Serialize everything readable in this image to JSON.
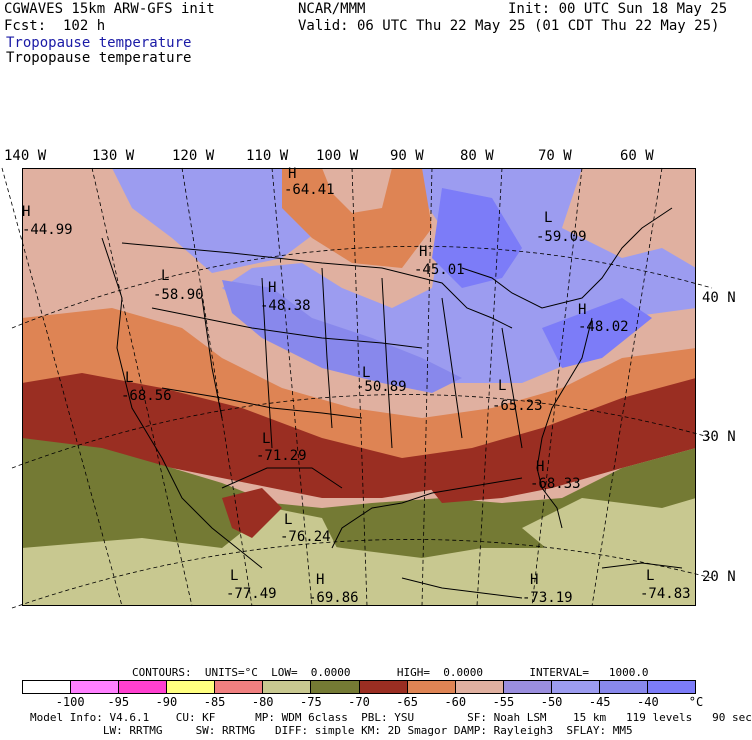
{
  "header": {
    "model_title": "CGWAVES 15km ARW-GFS init",
    "org": "NCAR/MMM",
    "init_time": "Init: 00 UTC Sun 18 May 25",
    "forecast_hour": "Fcst:  102 h",
    "valid_time": "Valid: 06 UTC Thu 22 May 25 (01 CDT Thu 22 May 25)",
    "field_title_1": "Tropopause temperature",
    "field_title_2": "Tropopause temperature"
  },
  "map": {
    "longitude_labels": [
      "140 W",
      "130 W",
      "120 W",
      "110 W",
      "100 W",
      "90 W",
      "80 W",
      "70 W",
      "60 W"
    ],
    "latitude_labels": [
      "40 N",
      "30 N",
      "20 N"
    ],
    "features": [
      {
        "kind": "H",
        "value": "-44.99"
      },
      {
        "kind": "H",
        "value": "-64.41"
      },
      {
        "kind": "L",
        "value": "-59.09"
      },
      {
        "kind": "H",
        "value": "-45.01"
      },
      {
        "kind": "L",
        "value": "-58.90"
      },
      {
        "kind": "H",
        "value": "-48.38"
      },
      {
        "kind": "H",
        "value": "-48.02"
      },
      {
        "kind": "L",
        "value": "-68.56"
      },
      {
        "kind": "L",
        "value": "-50.89"
      },
      {
        "kind": "L",
        "value": "-65.23"
      },
      {
        "kind": "L",
        "value": "-71.29"
      },
      {
        "kind": "H",
        "value": "-68.33"
      },
      {
        "kind": "L",
        "value": "-76.24"
      },
      {
        "kind": "L",
        "value": "-77.49"
      },
      {
        "kind": "H",
        "value": "-69.86"
      },
      {
        "kind": "H",
        "value": "-73.19"
      },
      {
        "kind": "L",
        "value": "-74.83"
      }
    ]
  },
  "contours_line": "CONTOURS:  UNITS=°C  LOW=  0.0000       HIGH=  0.0000       INTERVAL=   1000.0",
  "colorbar": {
    "colors": [
      "#ffffff",
      "#ff80ff",
      "#ff40d0",
      "#ffff80",
      "#f08080",
      "#c8c890",
      "#747a34",
      "#9a2e22",
      "#de8454",
      "#e0b0a0",
      "#9a8ede",
      "#9c9cf0",
      "#8888ec",
      "#7c7cf8"
    ],
    "tick_labels": [
      "-100",
      "-95",
      "-90",
      "-85",
      "-80",
      "-75",
      "-70",
      "-65",
      "-60",
      "-55",
      "-50",
      "-45",
      "-40",
      "°C"
    ]
  },
  "footer": {
    "line1": "Model Info: V4.6.1    CU: KF      MP: WDM 6class  PBL: YSU        SF: Noah LSM    15 km   119 levels   90 sec",
    "line2": "           LW: RRTMG     SW: RRTMG   DIFF: simple KM: 2D Smagor DAMP: Rayleigh3  SFLAY: MM5"
  }
}
